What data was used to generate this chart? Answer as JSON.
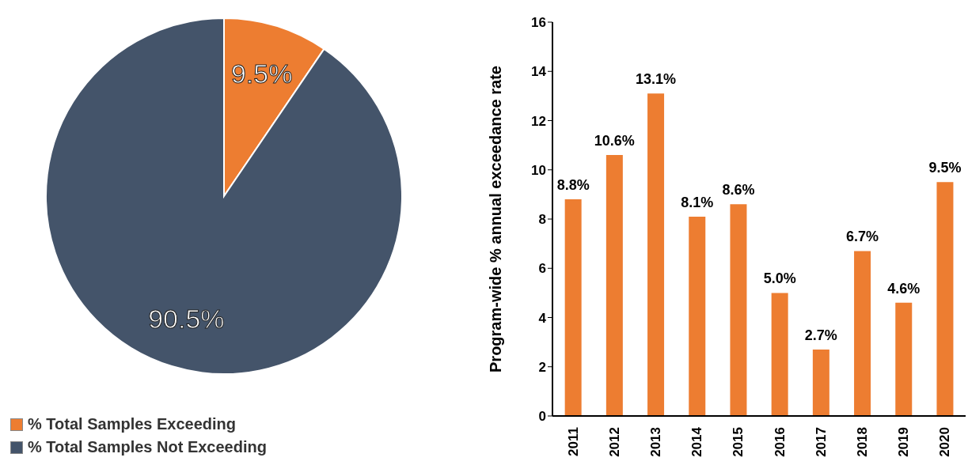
{
  "chart_data": [
    {
      "type": "pie",
      "categories": [
        "% Total Samples Exceeding",
        "% Total Samples Not Exceeding"
      ],
      "values": [
        9.5,
        90.5
      ],
      "colors": [
        "#ed7d31",
        "#44546a"
      ],
      "value_labels": [
        "9.5%",
        "90.5%"
      ],
      "legend": "bottom"
    },
    {
      "type": "bar",
      "categories": [
        "2011",
        "2012",
        "2013",
        "2014",
        "2015",
        "2016",
        "2017",
        "2018",
        "2019",
        "2020"
      ],
      "values": [
        8.8,
        10.6,
        13.1,
        8.1,
        8.6,
        5.0,
        2.7,
        6.7,
        4.6,
        9.5
      ],
      "color": "#ed7d31",
      "value_labels": [
        "8.8%",
        "10.6%",
        "13.1%",
        "8.1%",
        "8.6%",
        "5.0%",
        "2.7%",
        "6.7%",
        "4.6%",
        "9.5%"
      ],
      "ylabel": "Program-wide % annual exceedance rate",
      "ylim": [
        0,
        16
      ],
      "yticks": [
        0,
        2,
        4,
        6,
        8,
        10,
        12,
        14,
        16
      ],
      "grid": false
    }
  ]
}
